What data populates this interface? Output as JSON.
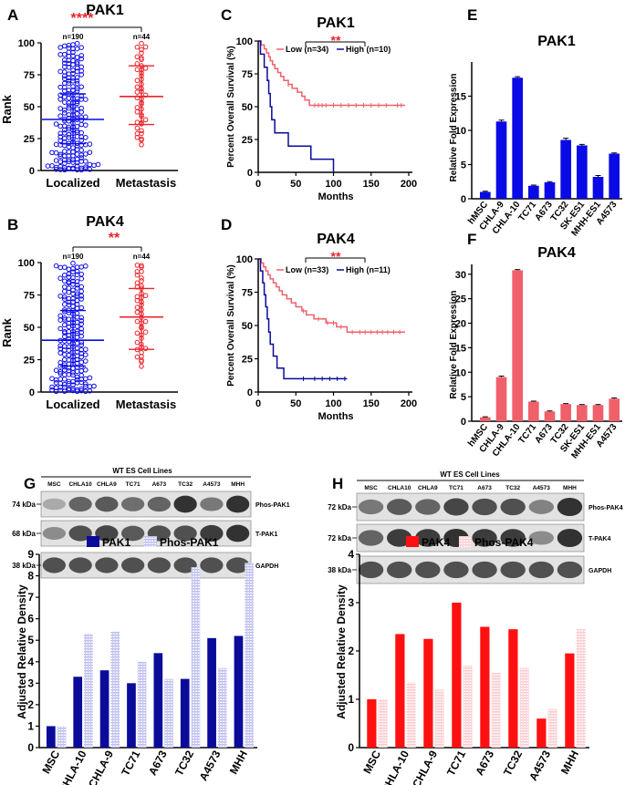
{
  "colors": {
    "blue": "#0a0ae6",
    "red": "#e8242b",
    "navy": "#0b0b9a",
    "salmon": "#f0606a",
    "hatch_blue": "#b8b8ee",
    "hatch_red": "#f9c8cc"
  },
  "chart_data": [
    {
      "id": "A",
      "type": "scatter",
      "title": "PAK1",
      "ylabel": "Rank",
      "categories": [
        "Localized",
        "Metastasis"
      ],
      "n_labels": [
        "n=190",
        "n=44"
      ],
      "significance": "****",
      "ylim": [
        0,
        100
      ],
      "yticks": [
        0,
        25,
        50,
        75,
        100
      ],
      "groups": [
        {
          "name": "Localized",
          "n": 190,
          "mean": 40,
          "sd_lower": 21,
          "sd_upper": 60
        },
        {
          "name": "Metastasis",
          "n": 44,
          "mean": 58,
          "sd_lower": 36,
          "sd_upper": 82
        }
      ]
    },
    {
      "id": "B",
      "type": "scatter",
      "title": "PAK4",
      "ylabel": "Rank",
      "categories": [
        "Localized",
        "Metastasis"
      ],
      "n_labels": [
        "n=190",
        "n=44"
      ],
      "significance": "**",
      "ylim": [
        0,
        100
      ],
      "yticks": [
        0,
        25,
        50,
        75,
        100
      ],
      "groups": [
        {
          "name": "Localized",
          "n": 190,
          "mean": 40,
          "sd_lower": 20,
          "sd_upper": 63
        },
        {
          "name": "Metastasis",
          "n": 44,
          "mean": 58,
          "sd_lower": 33,
          "sd_upper": 80
        }
      ]
    },
    {
      "id": "C",
      "type": "line",
      "title": "PAK1",
      "xlabel": "Months",
      "ylabel": "Percent Overall Survival (%)",
      "significance": "**",
      "xlim": [
        0,
        200
      ],
      "ylim": [
        0,
        100
      ],
      "xticks": [
        0,
        50,
        100,
        150,
        200
      ],
      "yticks": [
        0,
        25,
        50,
        75,
        100
      ],
      "series": [
        {
          "name": "Low (n=34)",
          "color": "red",
          "points": [
            [
              0,
              100
            ],
            [
              4,
              97
            ],
            [
              8,
              94
            ],
            [
              11,
              91
            ],
            [
              14,
              88
            ],
            [
              16,
              85
            ],
            [
              19,
              82
            ],
            [
              22,
              79
            ],
            [
              26,
              76
            ],
            [
              30,
              73
            ],
            [
              34,
              70
            ],
            [
              40,
              67
            ],
            [
              45,
              64
            ],
            [
              52,
              61
            ],
            [
              58,
              58
            ],
            [
              62,
              55
            ],
            [
              68,
              51
            ],
            [
              195,
              51
            ]
          ],
          "censor": [
            40,
            75,
            80,
            85,
            90,
            100,
            110,
            120,
            130,
            140,
            150,
            160,
            170,
            185,
            190
          ]
        },
        {
          "name": "High (n=10)",
          "color": "navy",
          "points": [
            [
              0,
              100
            ],
            [
              3,
              90
            ],
            [
              8,
              80
            ],
            [
              12,
              70
            ],
            [
              14,
              60
            ],
            [
              16,
              50
            ],
            [
              18,
              40
            ],
            [
              22,
              30
            ],
            [
              40,
              20
            ],
            [
              70,
              10
            ],
            [
              100,
              0
            ]
          ],
          "censor": []
        }
      ]
    },
    {
      "id": "D",
      "type": "line",
      "title": "PAK4",
      "xlabel": "Months",
      "ylabel": "Percent Overall Survival (%)",
      "significance": "**",
      "xlim": [
        0,
        200
      ],
      "ylim": [
        0,
        100
      ],
      "xticks": [
        0,
        50,
        100,
        150,
        200
      ],
      "yticks": [
        0,
        25,
        50,
        75,
        100
      ],
      "series": [
        {
          "name": "Low (n=33)",
          "color": "red",
          "points": [
            [
              0,
              100
            ],
            [
              4,
              97
            ],
            [
              7,
              94
            ],
            [
              10,
              91
            ],
            [
              13,
              88
            ],
            [
              16,
              85
            ],
            [
              20,
              82
            ],
            [
              24,
              79
            ],
            [
              28,
              76
            ],
            [
              32,
              73
            ],
            [
              38,
              70
            ],
            [
              44,
              67
            ],
            [
              50,
              64
            ],
            [
              58,
              61
            ],
            [
              64,
              58
            ],
            [
              74,
              55
            ],
            [
              90,
              52
            ],
            [
              104,
              49
            ],
            [
              118,
              45
            ],
            [
              195,
              45
            ]
          ],
          "censor": [
            60,
            80,
            92,
            100,
            110,
            125,
            135,
            142,
            150,
            158,
            165,
            172,
            180,
            188
          ]
        },
        {
          "name": "High (n=11)",
          "color": "navy",
          "points": [
            [
              0,
              100
            ],
            [
              3,
              91
            ],
            [
              6,
              82
            ],
            [
              8,
              73
            ],
            [
              10,
              64
            ],
            [
              12,
              55
            ],
            [
              14,
              45
            ],
            [
              16,
              36
            ],
            [
              20,
              27
            ],
            [
              25,
              18
            ],
            [
              34,
              10
            ],
            [
              118,
              10
            ]
          ],
          "censor": [
            60,
            75,
            85,
            95,
            105,
            115
          ]
        }
      ]
    },
    {
      "id": "E",
      "type": "bar",
      "title": "PAK1",
      "ylabel": "Relative Fold Expression",
      "categories": [
        "hMSC",
        "CHLA-9",
        "CHLA-10",
        "TC71",
        "A673",
        "TC32",
        "SK-ES1",
        "MHH-ES1",
        "A4573"
      ],
      "values": [
        1.0,
        11.3,
        17.7,
        1.9,
        2.4,
        8.6,
        7.8,
        3.2,
        6.6
      ],
      "errors": [
        0.1,
        0.2,
        0.15,
        0.1,
        0.1,
        0.25,
        0.15,
        0.2,
        0.1
      ],
      "ylim": [
        0,
        20
      ],
      "yticks": [
        0,
        5,
        10,
        15
      ],
      "color": "blue"
    },
    {
      "id": "F",
      "type": "bar",
      "title": "PAK4",
      "ylabel": "Relative Fold Expression",
      "categories": [
        "hMSC",
        "CHLA-9",
        "CHLA-10",
        "TC71",
        "A673",
        "TC32",
        "SK-ES1",
        "MHH-ES1",
        "A4573"
      ],
      "values": [
        0.8,
        9.0,
        30.8,
        4.0,
        2.0,
        3.5,
        3.3,
        3.3,
        4.6
      ],
      "errors": [
        0.1,
        0.2,
        0.15,
        0.1,
        0.1,
        0.1,
        0.1,
        0.1,
        0.15
      ],
      "ylim": [
        0,
        32
      ],
      "yticks": [
        0,
        5,
        10,
        15,
        20,
        25,
        30
      ],
      "color": "salmon"
    },
    {
      "id": "G",
      "type": "bar",
      "ylabel": "Adjusted Relative Density",
      "categories": [
        "MSC",
        "CHLA-10",
        "CHLA-9",
        "TC71",
        "A673",
        "TC32",
        "A4573",
        "MHH"
      ],
      "series": [
        {
          "name": "PAK1",
          "values": [
            1.0,
            3.3,
            3.6,
            3.0,
            4.4,
            3.2,
            5.1,
            5.2
          ],
          "color": "navy"
        },
        {
          "name": "Phos-PAK1",
          "values": [
            1.0,
            5.3,
            5.4,
            4.0,
            3.2,
            8.4,
            3.7,
            8.6
          ],
          "color": "hatch_blue"
        }
      ],
      "ylim": [
        0,
        9
      ],
      "yticks": [
        0,
        1,
        2,
        3,
        4,
        5,
        6,
        7,
        8,
        9
      ]
    },
    {
      "id": "H",
      "type": "bar",
      "ylabel": "Adjusted Relative Density",
      "categories": [
        "MSC",
        "CHLA-10",
        "CHLA-9",
        "TC71",
        "A673",
        "TC32",
        "A4573",
        "MHH"
      ],
      "series": [
        {
          "name": "PAK4",
          "values": [
            1.0,
            2.35,
            2.25,
            3.0,
            2.5,
            2.45,
            0.6,
            1.95
          ],
          "color": "red"
        },
        {
          "name": "Phos-PAK4",
          "values": [
            1.0,
            1.35,
            1.2,
            1.7,
            1.55,
            1.65,
            0.8,
            2.45
          ],
          "color": "hatch_red"
        }
      ],
      "ylim": [
        0,
        4
      ],
      "yticks": [
        0,
        1,
        2,
        3,
        4
      ]
    }
  ],
  "panels": {
    "labels": [
      "A",
      "B",
      "C",
      "D",
      "E",
      "F",
      "G",
      "H"
    ]
  },
  "blots": {
    "G": {
      "header": "WT ES Cell Lines",
      "lanes": [
        "MSC",
        "CHLA10",
        "CHLA9",
        "TC71",
        "A673",
        "TC32",
        "A4573",
        "MHH"
      ],
      "rows": [
        {
          "kda": "74 kDa",
          "label": "Phos-PAK1",
          "intensity": [
            0.25,
            0.6,
            0.65,
            0.55,
            0.6,
            0.85,
            0.5,
            0.85
          ]
        },
        {
          "kda": "68 kDa",
          "label": "T-PAK1",
          "intensity": [
            0.4,
            0.7,
            0.75,
            0.65,
            0.7,
            0.7,
            0.8,
            0.85
          ]
        },
        {
          "kda": "38 kDa",
          "label": "GAPDH",
          "intensity": [
            0.7,
            0.7,
            0.7,
            0.7,
            0.7,
            0.7,
            0.7,
            0.7
          ]
        }
      ]
    },
    "H": {
      "header": "WT ES Cell Lines",
      "lanes": [
        "MSC",
        "CHLA10",
        "CHLA9",
        "TC71",
        "A673",
        "TC32",
        "A4573",
        "MHH"
      ],
      "rows": [
        {
          "kda": "72 kDa",
          "label": "Phos-PAK4",
          "intensity": [
            0.5,
            0.65,
            0.6,
            0.75,
            0.7,
            0.7,
            0.45,
            0.85
          ]
        },
        {
          "kda": "72 kDa",
          "label": "T-PAK4",
          "intensity": [
            0.6,
            0.8,
            0.8,
            0.85,
            0.8,
            0.8,
            0.4,
            0.85
          ]
        },
        {
          "kda": "38 kDa",
          "label": "GAPDH",
          "intensity": [
            0.7,
            0.7,
            0.7,
            0.7,
            0.7,
            0.7,
            0.7,
            0.7
          ]
        }
      ]
    }
  }
}
